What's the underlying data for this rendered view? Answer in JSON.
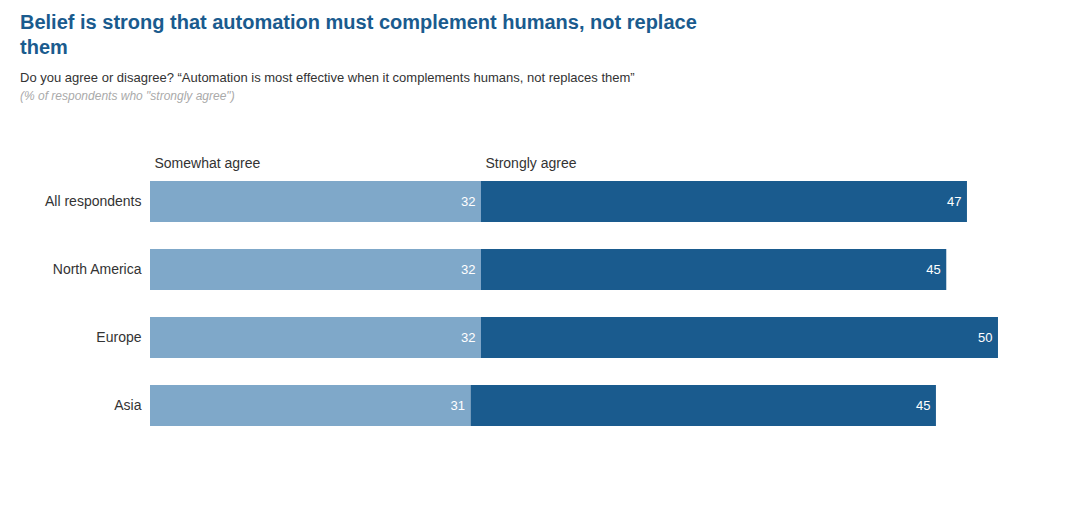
{
  "chart_data": {
    "type": "bar",
    "orientation": "horizontal",
    "stacked": true,
    "data_labels": true,
    "tick_labels": "y",
    "grid": false,
    "title": "Belief is strong that automation must complement humans, not replace\nthem",
    "color": "#1a5b8e",
    "subtitle": "Do you agree or disagree? “Automation is most effective when it complements humans, not replaces them”",
    "annotations": [
      "(% of respondents who \"strongly agree\")"
    ],
    "categories": [
      "All respondents",
      "North America",
      "Europe",
      "Asia"
    ],
    "series": [
      {
        "name": "Somewhat agree",
        "color": "#7fa8c9",
        "values": [
          32,
          32,
          32,
          31
        ]
      },
      {
        "name": "Strongly agree",
        "color": "#1a5b8e",
        "values": [
          47,
          45,
          50,
          45
        ]
      }
    ],
    "xlim": [
      0,
      85
    ]
  }
}
